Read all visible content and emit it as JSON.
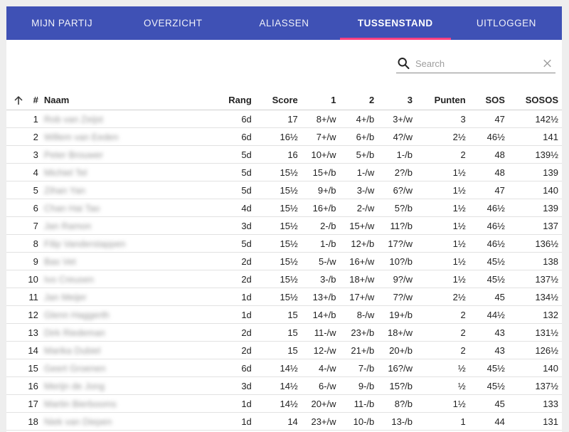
{
  "nav": {
    "tabs": [
      {
        "label": "MIJN PARTIJ"
      },
      {
        "label": "OVERZICHT"
      },
      {
        "label": "ALIASSEN"
      },
      {
        "label": "TUSSENSTAND"
      },
      {
        "label": "UITLOGGEN"
      }
    ],
    "active": "TUSSENSTAND",
    "accent": "#ff4081",
    "background": "#3f51b5"
  },
  "search": {
    "placeholder": "Search",
    "value": ""
  },
  "table": {
    "headers": {
      "num": "#",
      "name": "Naam",
      "rang": "Rang",
      "score": "Score",
      "r1": "1",
      "r2": "2",
      "r3": "3",
      "punten": "Punten",
      "sos": "SOS",
      "sosos": "SOSOS"
    },
    "rows": [
      {
        "num": "1",
        "name": "Rob van Zeijst",
        "rang": "6d",
        "score": "17",
        "r1": "8+/w",
        "r2": "4+/b",
        "r3": "3+/w",
        "punten": "3",
        "sos": "47",
        "sosos": "142½"
      },
      {
        "num": "2",
        "name": "Willem van Eeden",
        "rang": "6d",
        "score": "16½",
        "r1": "7+/w",
        "r2": "6+/b",
        "r3": "4?/w",
        "punten": "2½",
        "sos": "46½",
        "sosos": "141"
      },
      {
        "num": "3",
        "name": "Peter Brouwer",
        "rang": "5d",
        "score": "16",
        "r1": "10+/w",
        "r2": "5+/b",
        "r3": "1-/b",
        "punten": "2",
        "sos": "48",
        "sosos": "139½"
      },
      {
        "num": "4",
        "name": "Michiel Tel",
        "rang": "5d",
        "score": "15½",
        "r1": "15+/b",
        "r2": "1-/w",
        "r3": "2?/b",
        "punten": "1½",
        "sos": "48",
        "sosos": "139"
      },
      {
        "num": "5",
        "name": "Zihan Yan",
        "rang": "5d",
        "score": "15½",
        "r1": "9+/b",
        "r2": "3-/w",
        "r3": "6?/w",
        "punten": "1½",
        "sos": "47",
        "sosos": "140"
      },
      {
        "num": "6",
        "name": "Chan Hai Tao",
        "rang": "4d",
        "score": "15½",
        "r1": "16+/b",
        "r2": "2-/w",
        "r3": "5?/b",
        "punten": "1½",
        "sos": "46½",
        "sosos": "139"
      },
      {
        "num": "7",
        "name": "Jan Ramon",
        "rang": "3d",
        "score": "15½",
        "r1": "2-/b",
        "r2": "15+/w",
        "r3": "11?/b",
        "punten": "1½",
        "sos": "46½",
        "sosos": "137"
      },
      {
        "num": "8",
        "name": "Filip Vanderstappen",
        "rang": "5d",
        "score": "15½",
        "r1": "1-/b",
        "r2": "12+/b",
        "r3": "17?/w",
        "punten": "1½",
        "sos": "46½",
        "sosos": "136½"
      },
      {
        "num": "9",
        "name": "Bas Vet",
        "rang": "2d",
        "score": "15½",
        "r1": "5-/w",
        "r2": "16+/w",
        "r3": "10?/b",
        "punten": "1½",
        "sos": "45½",
        "sosos": "138"
      },
      {
        "num": "10",
        "name": "Ivo Creusen",
        "rang": "2d",
        "score": "15½",
        "r1": "3-/b",
        "r2": "18+/w",
        "r3": "9?/w",
        "punten": "1½",
        "sos": "45½",
        "sosos": "137½"
      },
      {
        "num": "11",
        "name": "Jan Meijer",
        "rang": "1d",
        "score": "15½",
        "r1": "13+/b",
        "r2": "17+/w",
        "r3": "7?/w",
        "punten": "2½",
        "sos": "45",
        "sosos": "134½"
      },
      {
        "num": "12",
        "name": "Glenn Haggerth",
        "rang": "1d",
        "score": "15",
        "r1": "14+/b",
        "r2": "8-/w",
        "r3": "19+/b",
        "punten": "2",
        "sos": "44½",
        "sosos": "132"
      },
      {
        "num": "13",
        "name": "Dirk Riedeman",
        "rang": "2d",
        "score": "15",
        "r1": "11-/w",
        "r2": "23+/b",
        "r3": "18+/w",
        "punten": "2",
        "sos": "43",
        "sosos": "131½"
      },
      {
        "num": "14",
        "name": "Marika Dubiel",
        "rang": "2d",
        "score": "15",
        "r1": "12-/w",
        "r2": "21+/b",
        "r3": "20+/b",
        "punten": "2",
        "sos": "43",
        "sosos": "126½"
      },
      {
        "num": "15",
        "name": "Geert Groenen",
        "rang": "6d",
        "score": "14½",
        "r1": "4-/w",
        "r2": "7-/b",
        "r3": "16?/w",
        "punten": "½",
        "sos": "45½",
        "sosos": "140"
      },
      {
        "num": "16",
        "name": "Merijn de Jong",
        "rang": "3d",
        "score": "14½",
        "r1": "6-/w",
        "r2": "9-/b",
        "r3": "15?/b",
        "punten": "½",
        "sos": "45½",
        "sosos": "137½"
      },
      {
        "num": "17",
        "name": "Martin Bierbooms",
        "rang": "1d",
        "score": "14½",
        "r1": "20+/w",
        "r2": "11-/b",
        "r3": "8?/b",
        "punten": "1½",
        "sos": "45",
        "sosos": "133"
      },
      {
        "num": "18",
        "name": "Niek van Diepen",
        "rang": "1d",
        "score": "14",
        "r1": "23+/w",
        "r2": "10-/b",
        "r3": "13-/b",
        "punten": "1",
        "sos": "44",
        "sosos": "131"
      }
    ]
  }
}
